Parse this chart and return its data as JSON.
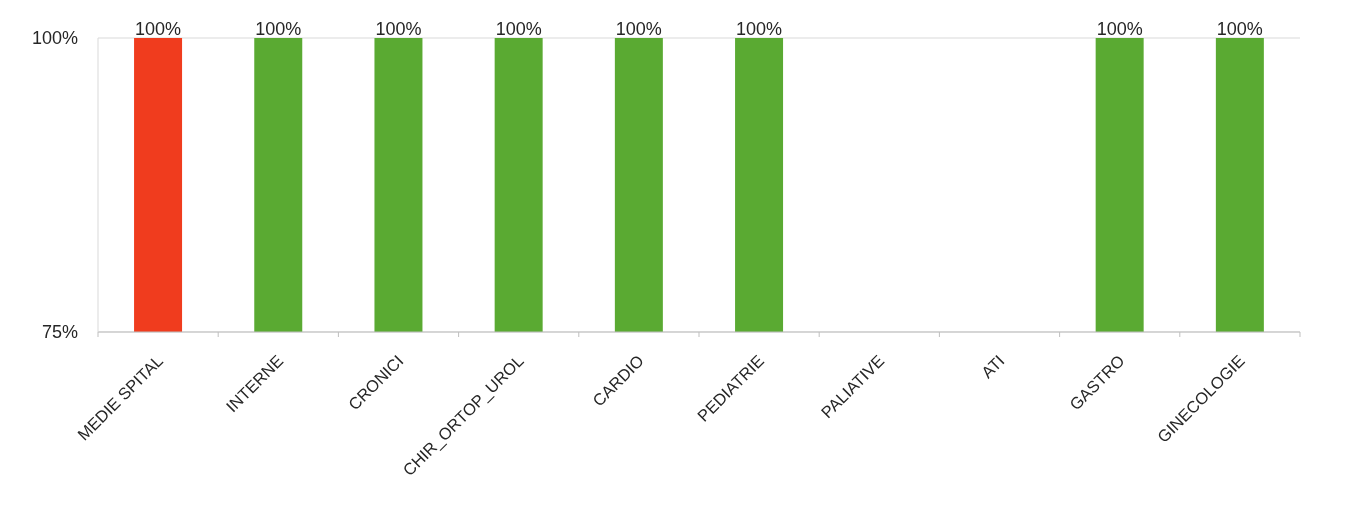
{
  "chart_data": {
    "type": "bar",
    "categories": [
      "MEDIE SPITAL",
      "INTERNE",
      "CRONICI",
      "CHIR_ORTOP_UROL",
      "CARDIO",
      "PEDIATRIE",
      "PALIATIVE",
      "ATI",
      "GASTRO",
      "GINECOLOGIE"
    ],
    "values": [
      100,
      100,
      100,
      100,
      100,
      100,
      null,
      null,
      100,
      100
    ],
    "colors": [
      "#f03c1e",
      "#5aaa32",
      "#5aaa32",
      "#5aaa32",
      "#5aaa32",
      "#5aaa32",
      "#5aaa32",
      "#5aaa32",
      "#5aaa32",
      "#5aaa32"
    ],
    "value_labels": [
      "100%",
      "100%",
      "100%",
      "100%",
      "100%",
      "100%",
      null,
      null,
      "100%",
      "100%"
    ],
    "ylim": [
      75,
      100
    ],
    "yticks": [
      {
        "value": 75,
        "label": "75%"
      },
      {
        "value": 100,
        "label": "100%"
      }
    ],
    "grid": "y"
  }
}
